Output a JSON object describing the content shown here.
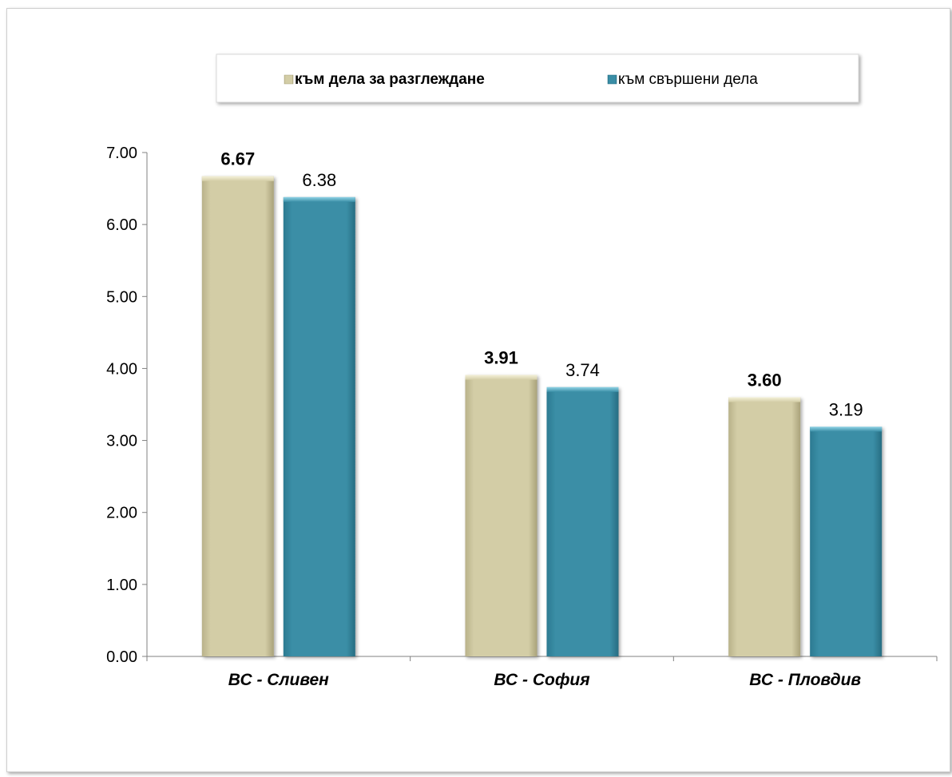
{
  "chart_data": {
    "type": "bar",
    "categories": [
      "ВС - Сливен",
      "ВС - София",
      "ВС - Пловдив"
    ],
    "series": [
      {
        "name": "към дела за разглеждане",
        "values": [
          6.67,
          3.91,
          3.6
        ],
        "labels": [
          "6.67",
          "3.91",
          "3.60"
        ],
        "color": "#d1cba3",
        "label_bold": true
      },
      {
        "name": "към свършени дела",
        "values": [
          6.38,
          3.74,
          3.19
        ],
        "labels": [
          "6.38",
          "3.74",
          "3.19"
        ],
        "color": "#3a8ea6",
        "label_bold": false
      }
    ],
    "ylim": [
      0,
      7
    ],
    "yticks": [
      "0.00",
      "1.00",
      "2.00",
      "3.00",
      "4.00",
      "5.00",
      "6.00",
      "7.00"
    ],
    "grid": false,
    "legend_position": "top"
  }
}
